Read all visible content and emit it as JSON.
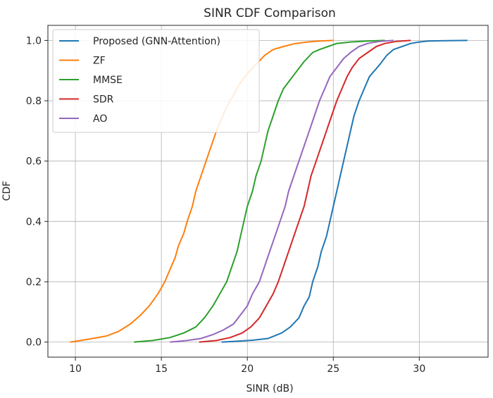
{
  "chart_data": {
    "type": "line",
    "title": "SINR CDF Comparison",
    "xlabel": "SINR (dB)",
    "ylabel": "CDF",
    "xlim": [
      8.4,
      34.0
    ],
    "ylim": [
      -0.05,
      1.05
    ],
    "xticks": [
      10,
      15,
      20,
      25,
      30
    ],
    "yticks": [
      0.0,
      0.2,
      0.4,
      0.6,
      0.8,
      1.0
    ],
    "xtick_labels": [
      "10",
      "15",
      "20",
      "25",
      "30"
    ],
    "ytick_labels": [
      "0.0",
      "0.2",
      "0.4",
      "0.6",
      "0.8",
      "1.0"
    ],
    "grid": true,
    "legend_position": "upper-left",
    "series": [
      {
        "name": "Proposed (GNN-Attention)",
        "color": "#1f77b4",
        "x": [
          18.5,
          19.5,
          20.3,
          21.2,
          22.0,
          22.5,
          23.0,
          23.3,
          23.6,
          23.8,
          24.1,
          24.3,
          24.6,
          24.8,
          25.0,
          25.2,
          25.4,
          25.6,
          25.8,
          26.0,
          26.2,
          26.5,
          26.8,
          27.1,
          27.4,
          27.7,
          28.1,
          28.5,
          29.0,
          29.5,
          30.0,
          30.5,
          31.5,
          32.8
        ],
        "y": [
          0.0,
          0.003,
          0.006,
          0.012,
          0.03,
          0.05,
          0.08,
          0.12,
          0.15,
          0.2,
          0.25,
          0.3,
          0.35,
          0.4,
          0.45,
          0.5,
          0.55,
          0.6,
          0.65,
          0.7,
          0.75,
          0.8,
          0.84,
          0.88,
          0.9,
          0.92,
          0.95,
          0.97,
          0.98,
          0.99,
          0.995,
          0.998,
          0.999,
          1.0
        ]
      },
      {
        "name": "ZF",
        "color": "#ff7f0e",
        "x": [
          9.7,
          10.3,
          11.0,
          11.8,
          12.5,
          13.2,
          13.8,
          14.3,
          14.8,
          15.2,
          15.5,
          15.8,
          16.0,
          16.3,
          16.5,
          16.8,
          17.0,
          17.3,
          17.6,
          17.9,
          18.2,
          18.5,
          18.8,
          19.2,
          19.6,
          20.0,
          20.5,
          21.0,
          21.5,
          22.1,
          22.8,
          23.5,
          24.2,
          25.0
        ],
        "y": [
          0.0,
          0.005,
          0.012,
          0.02,
          0.035,
          0.06,
          0.09,
          0.12,
          0.16,
          0.2,
          0.24,
          0.28,
          0.32,
          0.36,
          0.4,
          0.45,
          0.5,
          0.55,
          0.6,
          0.65,
          0.7,
          0.74,
          0.78,
          0.82,
          0.86,
          0.89,
          0.92,
          0.95,
          0.97,
          0.98,
          0.99,
          0.995,
          0.998,
          1.0
        ]
      },
      {
        "name": "MMSE",
        "color": "#2ca02c",
        "x": [
          13.4,
          14.5,
          15.5,
          16.3,
          17.0,
          17.5,
          18.0,
          18.4,
          18.8,
          19.1,
          19.4,
          19.6,
          19.8,
          20.0,
          20.3,
          20.5,
          20.8,
          21.0,
          21.2,
          21.5,
          21.8,
          22.1,
          22.5,
          22.9,
          23.3,
          23.8,
          24.2,
          24.7,
          25.2,
          26.0,
          27.0,
          28.0
        ],
        "y": [
          0.0,
          0.005,
          0.015,
          0.03,
          0.05,
          0.08,
          0.12,
          0.16,
          0.2,
          0.25,
          0.3,
          0.35,
          0.4,
          0.45,
          0.5,
          0.55,
          0.6,
          0.65,
          0.7,
          0.75,
          0.8,
          0.84,
          0.87,
          0.9,
          0.93,
          0.96,
          0.97,
          0.98,
          0.99,
          0.995,
          0.998,
          1.0
        ]
      },
      {
        "name": "SDR",
        "color": "#d62728",
        "x": [
          17.2,
          18.2,
          19.0,
          19.7,
          20.2,
          20.7,
          21.1,
          21.5,
          21.8,
          22.1,
          22.4,
          22.7,
          23.0,
          23.3,
          23.5,
          23.7,
          24.0,
          24.3,
          24.6,
          24.9,
          25.2,
          25.5,
          25.8,
          26.1,
          26.5,
          27.0,
          27.5,
          28.0,
          28.7,
          29.5
        ],
        "y": [
          0.0,
          0.005,
          0.015,
          0.03,
          0.05,
          0.08,
          0.12,
          0.16,
          0.2,
          0.25,
          0.3,
          0.35,
          0.4,
          0.45,
          0.5,
          0.55,
          0.6,
          0.65,
          0.7,
          0.75,
          0.8,
          0.84,
          0.88,
          0.91,
          0.94,
          0.96,
          0.98,
          0.99,
          0.997,
          1.0
        ]
      },
      {
        "name": "AO",
        "color": "#9467bd",
        "x": [
          15.5,
          16.5,
          17.3,
          18.0,
          18.6,
          19.2,
          19.6,
          20.0,
          20.3,
          20.7,
          21.0,
          21.3,
          21.6,
          21.9,
          22.2,
          22.4,
          22.7,
          23.0,
          23.3,
          23.6,
          23.9,
          24.2,
          24.5,
          24.8,
          25.2,
          25.6,
          26.0,
          26.5,
          27.0,
          27.7,
          28.5
        ],
        "y": [
          0.0,
          0.005,
          0.012,
          0.025,
          0.04,
          0.06,
          0.09,
          0.12,
          0.16,
          0.2,
          0.25,
          0.3,
          0.35,
          0.4,
          0.45,
          0.5,
          0.55,
          0.6,
          0.65,
          0.7,
          0.75,
          0.8,
          0.84,
          0.88,
          0.91,
          0.94,
          0.96,
          0.98,
          0.99,
          0.997,
          1.0
        ]
      }
    ]
  }
}
